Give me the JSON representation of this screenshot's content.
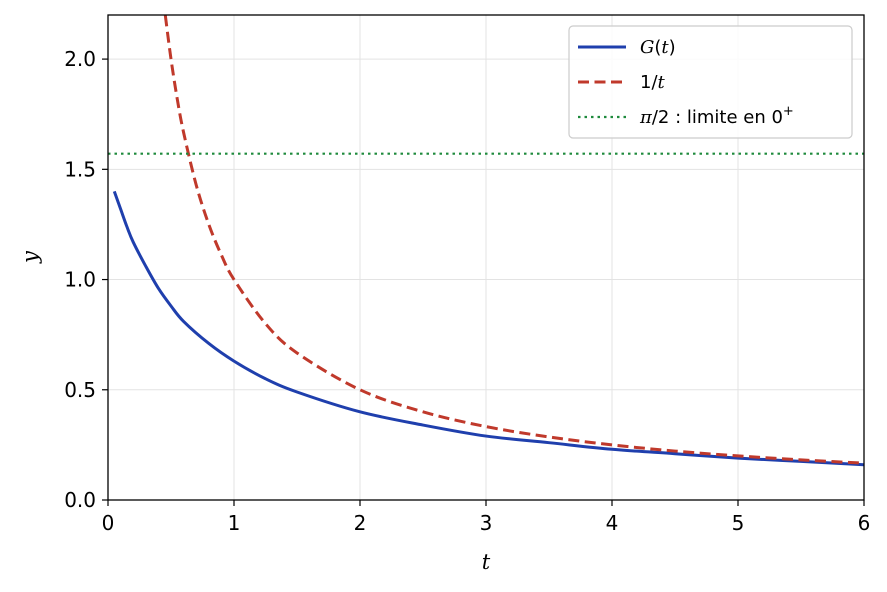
{
  "chart_data": {
    "type": "line",
    "xlabel": "t",
    "ylabel": "y",
    "xlim": [
      0,
      6
    ],
    "ylim": [
      0,
      2.2
    ],
    "x_ticks": [
      "0",
      "1",
      "2",
      "3",
      "4",
      "5",
      "6"
    ],
    "y_ticks": [
      "0.0",
      "0.5",
      "1.0",
      "1.5",
      "2.0"
    ],
    "grid": true,
    "legend_position": "top-right",
    "series": [
      {
        "name": "G(t)",
        "name_parts": [
          "G",
          "(",
          "t",
          ")"
        ],
        "color": "#1f3fad",
        "style": "solid",
        "x": [
          0.05,
          0.1,
          0.15,
          0.2,
          0.3,
          0.4,
          0.5,
          0.6,
          0.8,
          1.0,
          1.25,
          1.5,
          2.0,
          2.5,
          3.0,
          3.5,
          4.0,
          4.5,
          5.0,
          5.5,
          6.0
        ],
        "y": [
          1.4,
          1.32,
          1.24,
          1.17,
          1.06,
          0.96,
          0.88,
          0.81,
          0.71,
          0.63,
          0.55,
          0.49,
          0.4,
          0.34,
          0.29,
          0.26,
          0.23,
          0.21,
          0.19,
          0.175,
          0.16
        ]
      },
      {
        "name": "1/t",
        "name_parts": [
          "1/",
          "t"
        ],
        "color": "#c0392b",
        "style": "dashed",
        "x": [
          0.455,
          0.5,
          0.55,
          0.6,
          0.7,
          0.8,
          0.9,
          1.0,
          1.25,
          1.5,
          2.0,
          2.5,
          3.0,
          3.5,
          4.0,
          4.5,
          5.0,
          5.5,
          6.0
        ],
        "y": [
          2.198,
          2.0,
          1.818,
          1.667,
          1.429,
          1.25,
          1.111,
          1.0,
          0.8,
          0.667,
          0.5,
          0.4,
          0.333,
          0.286,
          0.25,
          0.222,
          0.2,
          0.182,
          0.167
        ]
      },
      {
        "name": "π/2 : limite en 0⁺",
        "name_parts": [
          "π",
          "/2 : limite en 0",
          "+"
        ],
        "color": "#1e8a3c",
        "style": "dotted",
        "x": [
          0,
          6
        ],
        "y": [
          1.5708,
          1.5708
        ]
      }
    ]
  }
}
